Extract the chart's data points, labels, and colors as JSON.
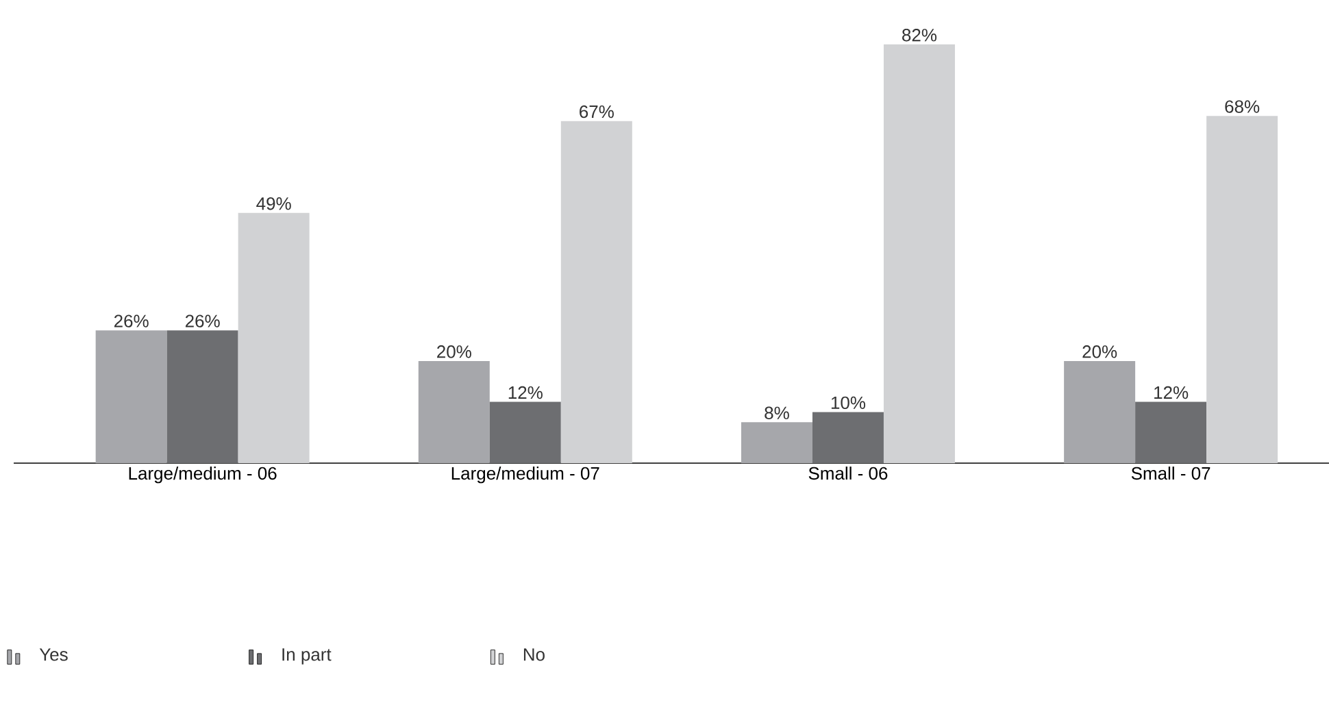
{
  "chart_data": {
    "type": "bar",
    "categories": [
      "Large/medium - 06",
      "Large/medium - 07",
      "Small - 06",
      "Small - 07"
    ],
    "series": [
      {
        "name": "Yes",
        "color": "#a6a7ab",
        "values": [
          26,
          20,
          8,
          20
        ],
        "value_labels": [
          "26%",
          "20%",
          "8%",
          "20%"
        ]
      },
      {
        "name": "In part",
        "color": "#6d6e71",
        "values": [
          26,
          12,
          10,
          12
        ],
        "value_labels": [
          "26%",
          "12%",
          "10%",
          "12%"
        ]
      },
      {
        "name": "No",
        "color": "#d1d2d4",
        "values": [
          49,
          67,
          82,
          68
        ],
        "value_labels": [
          "49%",
          "67%",
          "82%",
          "68%"
        ]
      }
    ],
    "legend": "bottom left"
  }
}
